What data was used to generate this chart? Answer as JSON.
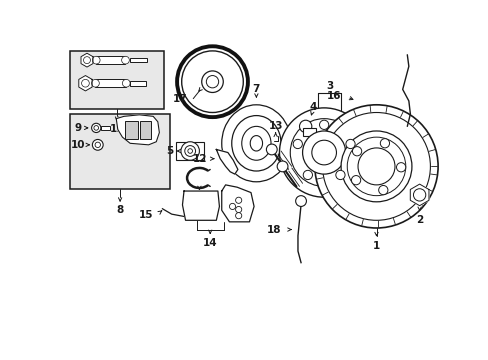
{
  "bg_color": "#ffffff",
  "line_color": "#1a1a1a",
  "box_fill": "#e8e8e8",
  "figsize": [
    4.89,
    3.6
  ],
  "dpi": 100,
  "xlim": [
    0,
    489
  ],
  "ylim": [
    0,
    360
  ]
}
